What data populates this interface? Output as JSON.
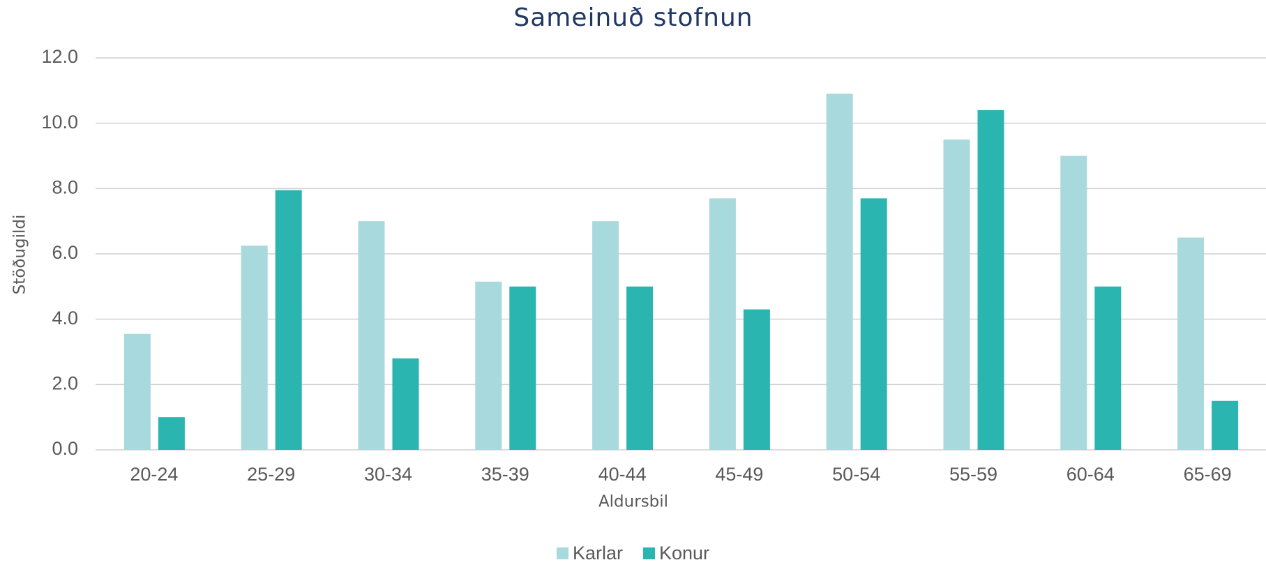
{
  "chart_data": {
    "type": "bar",
    "title": "Sameinuð stofnun",
    "x_label": "Aldursbil",
    "y_label": "Stöðugildi",
    "categories": [
      "20-24",
      "25-29",
      "30-34",
      "35-39",
      "40-44",
      "45-49",
      "50-54",
      "55-59",
      "60-64",
      "65-69"
    ],
    "series": [
      {
        "name": "Karlar",
        "color": "#a8d9dd",
        "values": [
          3.55,
          6.25,
          7.0,
          5.15,
          7.0,
          7.7,
          10.9,
          9.5,
          9.0,
          6.5
        ]
      },
      {
        "name": "Konur",
        "color": "#2ab5b0",
        "values": [
          1.0,
          7.95,
          2.8,
          5.0,
          5.0,
          4.3,
          7.7,
          10.4,
          5.0,
          1.5
        ]
      }
    ],
    "ylim": [
      0,
      12
    ],
    "yticks": [
      {
        "value": 0,
        "label": "0.0"
      },
      {
        "value": 2,
        "label": "2.0"
      },
      {
        "value": 4,
        "label": "4.0"
      },
      {
        "value": 6,
        "label": "6.0"
      },
      {
        "value": 8,
        "label": "8.0"
      },
      {
        "value": 10,
        "label": "10.0"
      },
      {
        "value": 12,
        "label": "12.0"
      }
    ],
    "grid": true,
    "legend": "bottom"
  }
}
